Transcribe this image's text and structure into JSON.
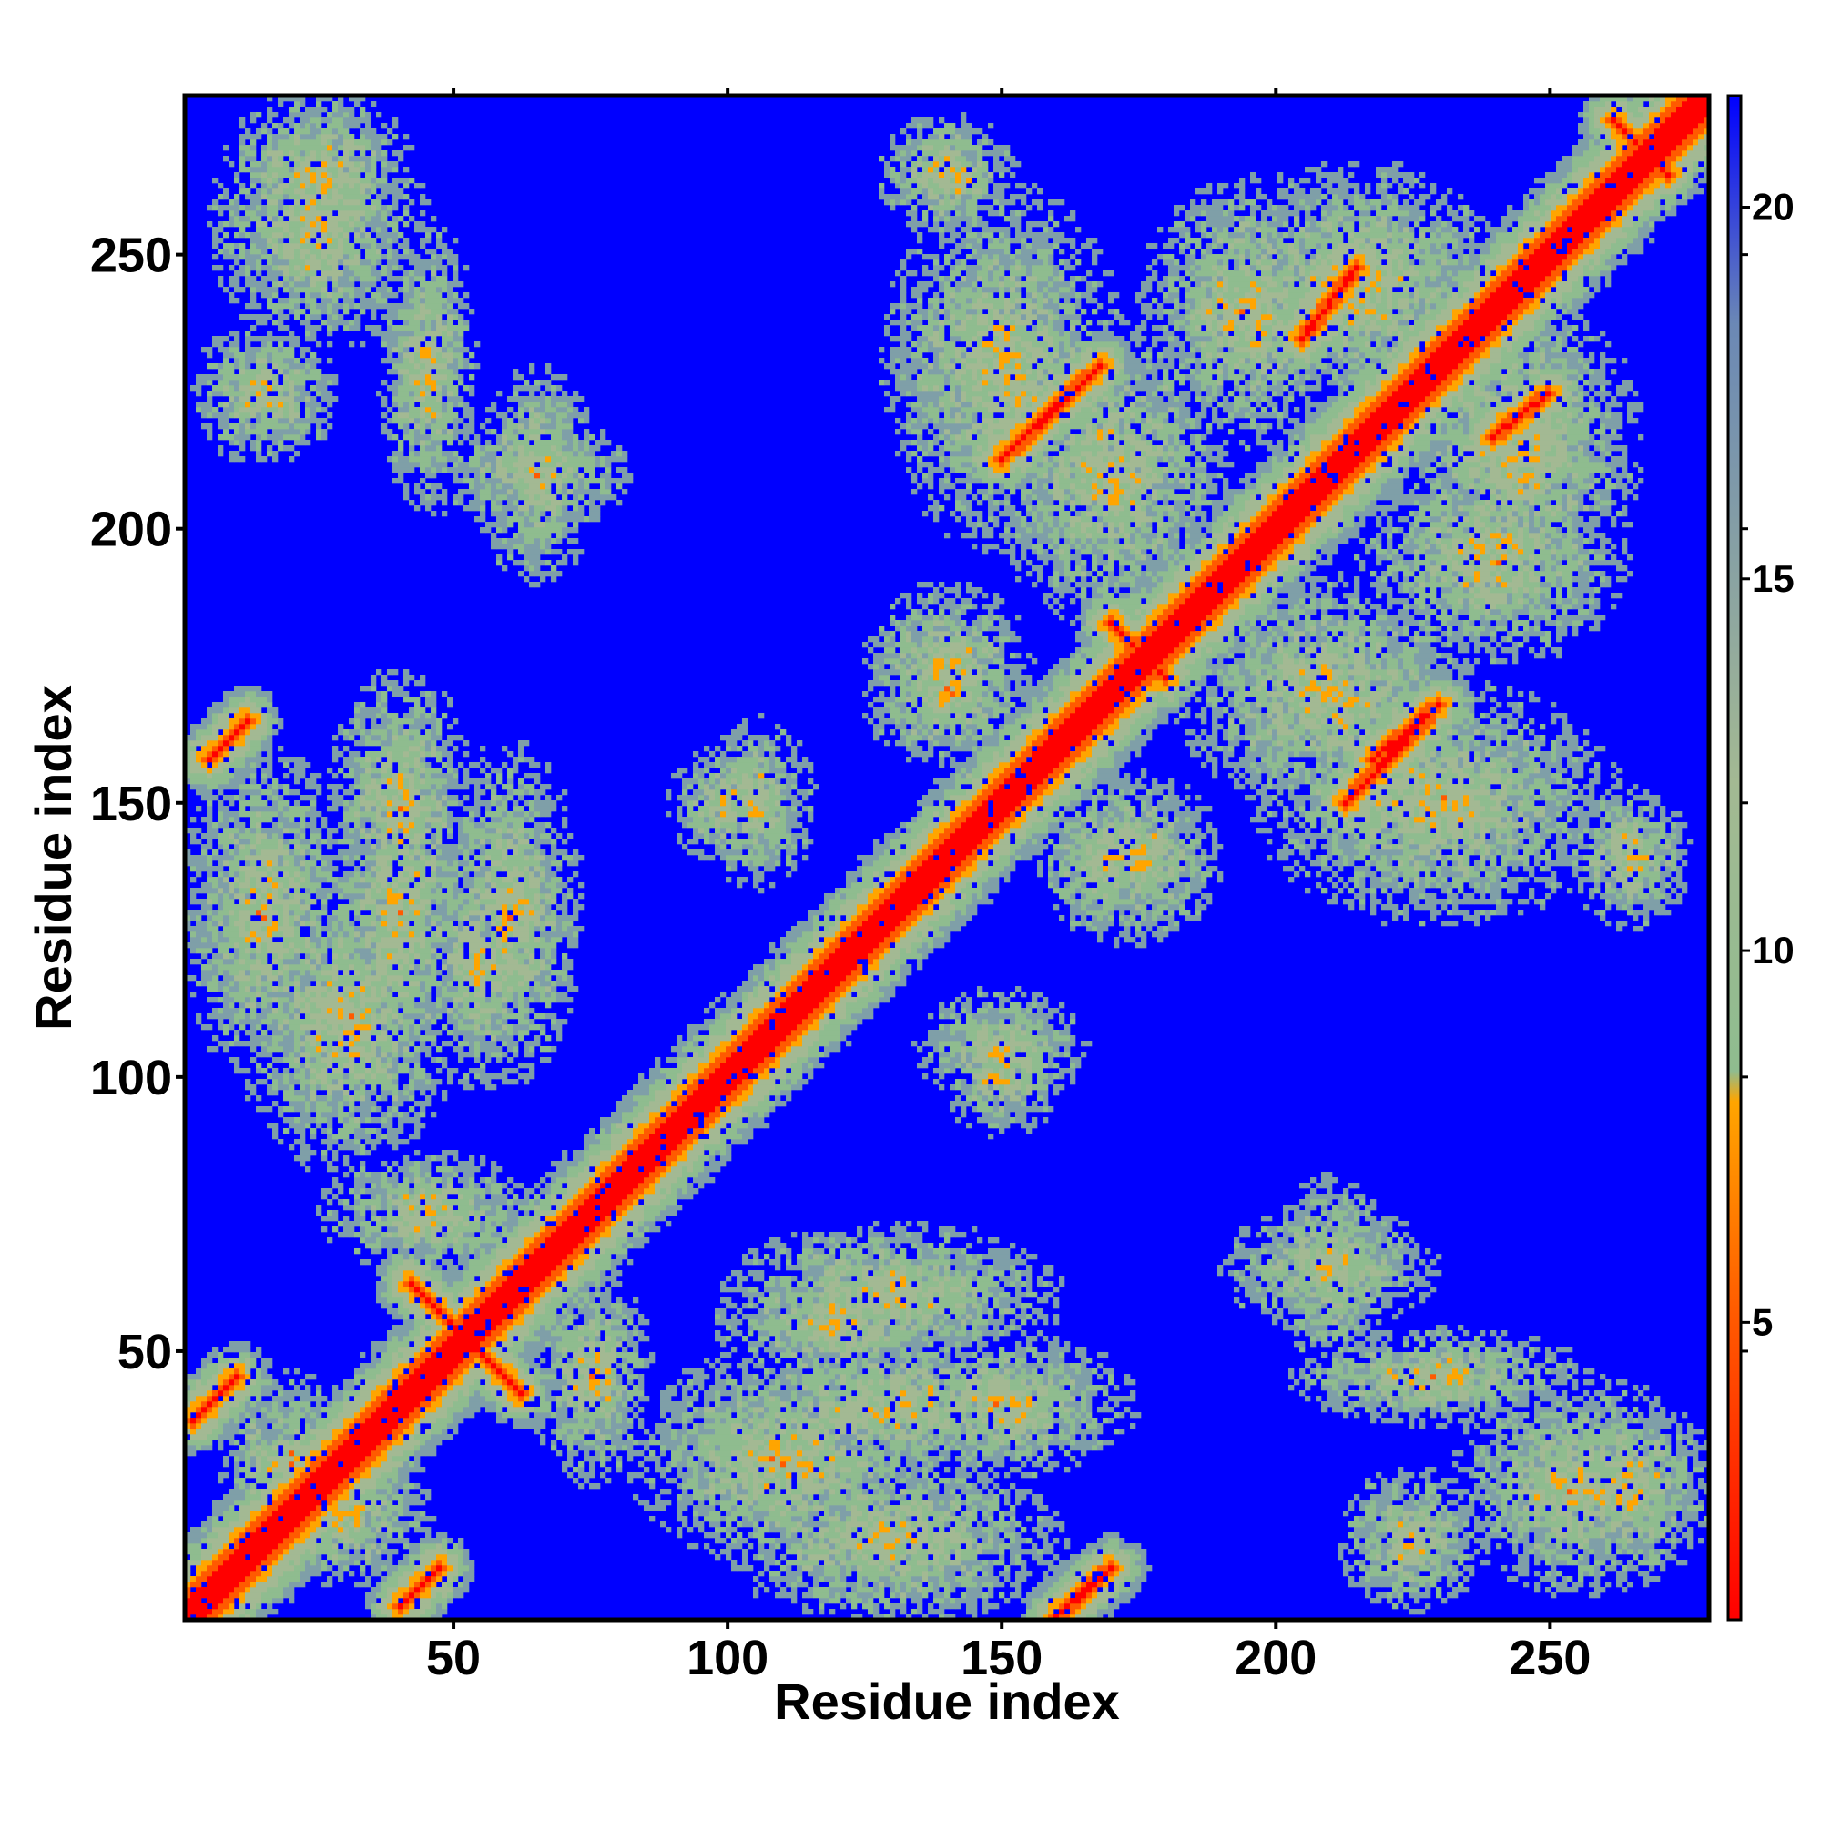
{
  "chart_data": {
    "type": "heatmap",
    "title": "",
    "xlabel": "Residue index",
    "ylabel": "Residue index",
    "xlim": [
      1,
      279
    ],
    "ylim": [
      1,
      279
    ],
    "xticks": [
      50,
      100,
      150,
      200,
      250
    ],
    "yticks": [
      50,
      100,
      150,
      200,
      250
    ],
    "colorbar": {
      "range": [
        1,
        21.5
      ],
      "ticks": [
        5,
        10,
        15,
        20
      ],
      "colors": [
        {
          "value": 1,
          "color": "#ff0000"
        },
        {
          "value": 5,
          "color": "#ff5a00"
        },
        {
          "value": 8,
          "color": "#ffa500"
        },
        {
          "value": 8.5,
          "color": "#8fbc8f"
        },
        {
          "value": 12,
          "color": "#a3b993"
        },
        {
          "value": 18,
          "color": "#6b88b5"
        },
        {
          "value": 21.5,
          "color": "#0000ff"
        }
      ],
      "background_value": 21.5
    },
    "contact_bands": [
      {
        "kind": "diagonal",
        "from": [
          1,
          1
        ],
        "to": [
          279,
          279
        ]
      },
      {
        "kind": "parallel",
        "from": [
          160,
          1
        ],
        "to": [
          170,
          10
        ]
      },
      {
        "kind": "parallel",
        "from": [
          40,
          3
        ],
        "to": [
          47,
          10
        ]
      },
      {
        "kind": "parallel",
        "from": [
          2,
          37
        ],
        "to": [
          10,
          45
        ]
      },
      {
        "kind": "antiparallel",
        "from": [
          42,
          62
        ],
        "to": [
          62,
          42
        ]
      },
      {
        "kind": "parallel",
        "from": [
          5,
          158
        ],
        "to": [
          12,
          165
        ]
      },
      {
        "kind": "parallel",
        "from": [
          150,
          213
        ],
        "to": [
          168,
          230
        ]
      },
      {
        "kind": "parallel",
        "from": [
          213,
          150
        ],
        "to": [
          230,
          168
        ]
      },
      {
        "kind": "parallel",
        "from": [
          218,
          158
        ],
        "to": [
          230,
          168
        ]
      },
      {
        "kind": "parallel",
        "from": [
          240,
          217
        ],
        "to": [
          250,
          225
        ]
      },
      {
        "kind": "parallel",
        "from": [
          205,
          235
        ],
        "to": [
          215,
          248
        ]
      },
      {
        "kind": "antiparallel",
        "from": [
          262,
          275
        ],
        "to": [
          272,
          265
        ]
      },
      {
        "kind": "antiparallel",
        "from": [
          170,
          183
        ],
        "to": [
          180,
          173
        ]
      }
    ],
    "contact_clusters": [
      {
        "x": 30,
        "y": 20,
        "rx": 14,
        "ry": 12
      },
      {
        "x": 45,
        "y": 75,
        "rx": 18,
        "ry": 10
      },
      {
        "x": 110,
        "y": 30,
        "rx": 25,
        "ry": 18
      },
      {
        "x": 120,
        "y": 55,
        "rx": 20,
        "ry": 10
      },
      {
        "x": 150,
        "y": 40,
        "rx": 22,
        "ry": 12
      },
      {
        "x": 265,
        "y": 25,
        "rx": 14,
        "ry": 16
      },
      {
        "x": 230,
        "y": 45,
        "rx": 25,
        "ry": 8
      },
      {
        "x": 210,
        "y": 65,
        "rx": 18,
        "ry": 10
      },
      {
        "x": 15,
        "y": 130,
        "rx": 14,
        "ry": 28
      },
      {
        "x": 40,
        "y": 130,
        "rx": 12,
        "ry": 30
      },
      {
        "x": 60,
        "y": 130,
        "rx": 12,
        "ry": 28
      },
      {
        "x": 100,
        "y": 150,
        "rx": 10,
        "ry": 10
      },
      {
        "x": 150,
        "y": 105,
        "rx": 14,
        "ry": 10
      },
      {
        "x": 175,
        "y": 140,
        "rx": 14,
        "ry": 14
      },
      {
        "x": 140,
        "y": 170,
        "rx": 14,
        "ry": 12
      },
      {
        "x": 230,
        "y": 150,
        "rx": 30,
        "ry": 20
      },
      {
        "x": 240,
        "y": 195,
        "rx": 22,
        "ry": 18
      },
      {
        "x": 170,
        "y": 210,
        "rx": 20,
        "ry": 25
      },
      {
        "x": 215,
        "y": 245,
        "rx": 25,
        "ry": 20
      },
      {
        "x": 25,
        "y": 255,
        "rx": 18,
        "ry": 20
      },
      {
        "x": 15,
        "y": 225,
        "rx": 12,
        "ry": 12
      },
      {
        "x": 65,
        "y": 210,
        "rx": 15,
        "ry": 10
      },
      {
        "x": 150,
        "y": 230,
        "rx": 20,
        "ry": 15
      },
      {
        "x": 265,
        "y": 140,
        "rx": 10,
        "ry": 12
      }
    ]
  }
}
